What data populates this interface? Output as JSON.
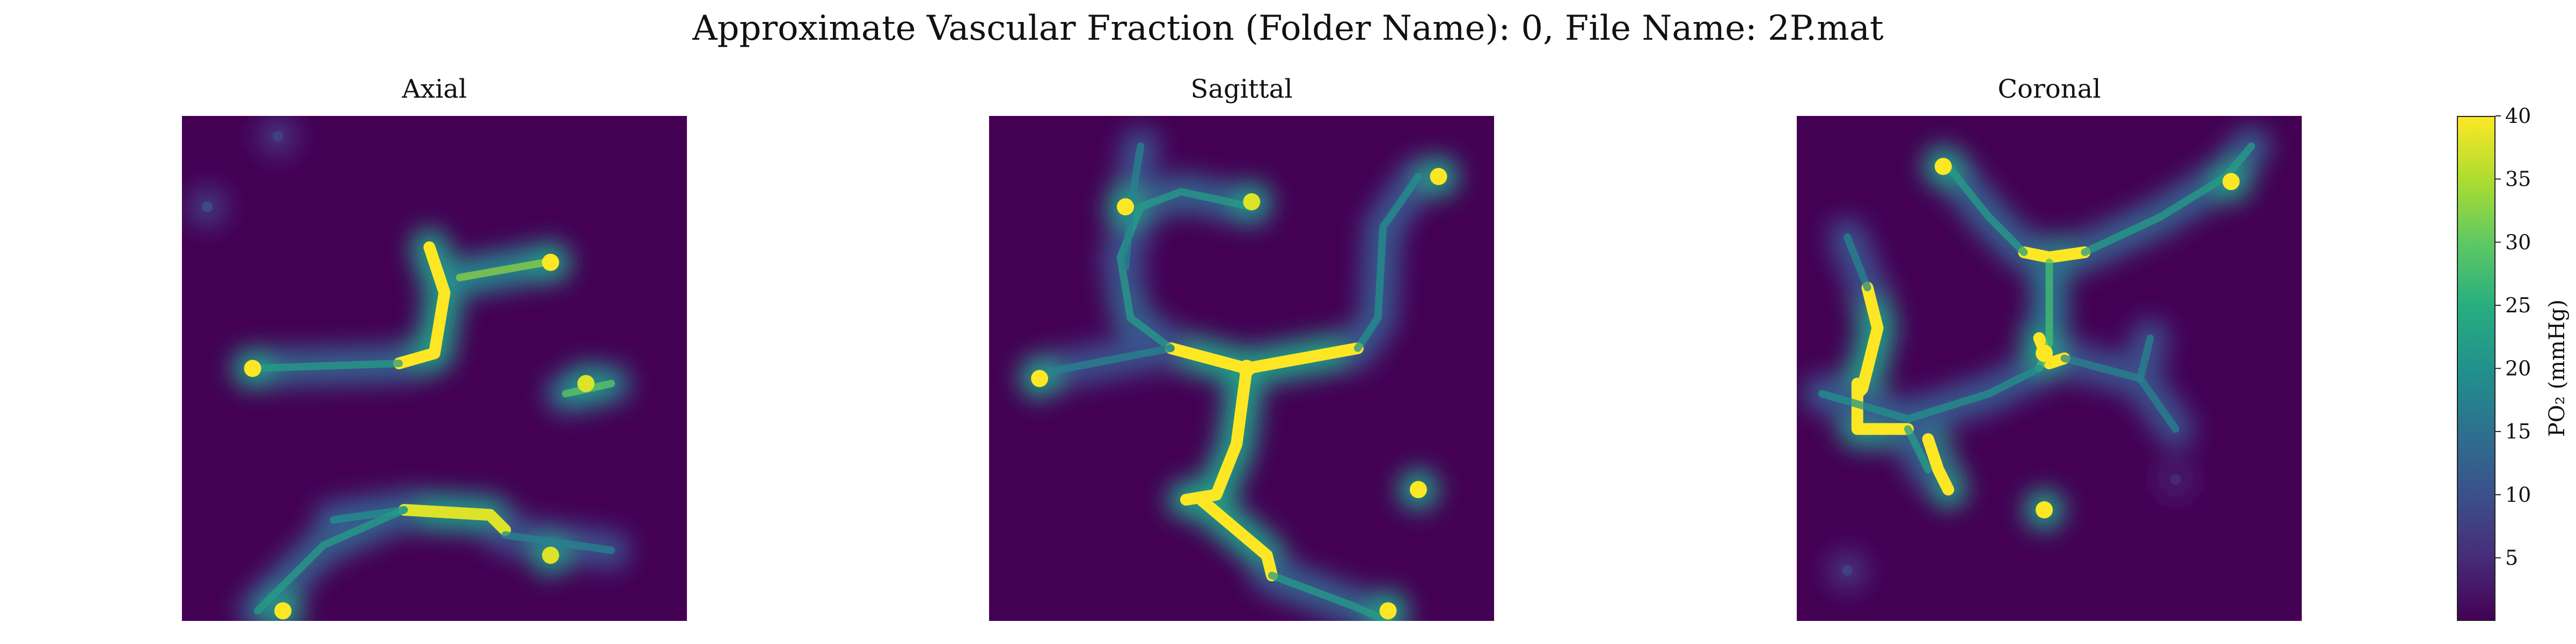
{
  "figure": {
    "title": "Approximate Vascular Fraction (Folder Name): 0, File Name: 2P.mat"
  },
  "colorbar": {
    "label": "PO₂ (mmHg)",
    "range": [
      0,
      40
    ],
    "ticks": [
      5,
      10,
      15,
      20,
      25,
      30,
      35,
      40
    ],
    "colormap": "viridis"
  },
  "chart_data": [
    {
      "type": "heatmap",
      "title": "Axial",
      "colormap": "viridis",
      "zlim": [
        0,
        40
      ],
      "units": "mmHg",
      "grid": false,
      "vessels": [
        {
          "path": [
            [
              0.49,
              0.26
            ],
            [
              0.52,
              0.35
            ],
            [
              0.5,
              0.47
            ],
            [
              0.43,
              0.49
            ]
          ],
          "po2": 40
        },
        {
          "path": [
            [
              0.55,
              0.32
            ],
            [
              0.72,
              0.29
            ]
          ],
          "po2": 33
        },
        {
          "path": [
            [
              0.14,
              0.5
            ],
            [
              0.43,
              0.49
            ]
          ],
          "po2": 22
        },
        {
          "path": [
            [
              0.44,
              0.78
            ],
            [
              0.61,
              0.79
            ],
            [
              0.64,
              0.82
            ]
          ],
          "po2": 38
        },
        {
          "path": [
            [
              0.3,
              0.8
            ],
            [
              0.44,
              0.78
            ]
          ],
          "po2": 20
        },
        {
          "path": [
            [
              0.64,
              0.83
            ],
            [
              0.85,
              0.86
            ]
          ],
          "po2": 18
        },
        {
          "path": [
            [
              0.15,
              0.98
            ],
            [
              0.28,
              0.85
            ],
            [
              0.44,
              0.78
            ]
          ],
          "po2": 22
        },
        {
          "path": [
            [
              0.76,
              0.55
            ],
            [
              0.85,
              0.53
            ]
          ],
          "po2": 30
        }
      ],
      "spots": [
        {
          "x": 0.14,
          "y": 0.5,
          "po2": 40
        },
        {
          "x": 0.73,
          "y": 0.29,
          "po2": 40
        },
        {
          "x": 0.8,
          "y": 0.53,
          "po2": 38
        },
        {
          "x": 0.73,
          "y": 0.87,
          "po2": 38
        },
        {
          "x": 0.2,
          "y": 0.98,
          "po2": 40
        },
        {
          "x": 0.05,
          "y": 0.18,
          "po2": 12
        },
        {
          "x": 0.19,
          "y": 0.04,
          "po2": 10
        }
      ]
    },
    {
      "type": "heatmap",
      "title": "Sagittal",
      "colormap": "viridis",
      "zlim": [
        0,
        40
      ],
      "units": "mmHg",
      "grid": false,
      "vessels": [
        {
          "path": [
            [
              0.36,
              0.46
            ],
            [
              0.51,
              0.5
            ],
            [
              0.73,
              0.46
            ]
          ],
          "po2": 40
        },
        {
          "path": [
            [
              0.51,
              0.5
            ],
            [
              0.49,
              0.65
            ],
            [
              0.45,
              0.75
            ],
            [
              0.39,
              0.76
            ]
          ],
          "po2": 40
        },
        {
          "path": [
            [
              0.42,
              0.76
            ],
            [
              0.55,
              0.87
            ],
            [
              0.56,
              0.91
            ]
          ],
          "po2": 40
        },
        {
          "path": [
            [
              0.36,
              0.46
            ],
            [
              0.28,
              0.4
            ],
            [
              0.26,
              0.28
            ],
            [
              0.3,
              0.18
            ],
            [
              0.38,
              0.15
            ],
            [
              0.52,
              0.18
            ]
          ],
          "po2": 22
        },
        {
          "path": [
            [
              0.73,
              0.46
            ],
            [
              0.77,
              0.4
            ],
            [
              0.78,
              0.22
            ],
            [
              0.85,
              0.12
            ]
          ],
          "po2": 20
        },
        {
          "path": [
            [
              0.1,
              0.51
            ],
            [
              0.36,
              0.46
            ]
          ],
          "po2": 18
        },
        {
          "path": [
            [
              0.56,
              0.91
            ],
            [
              0.72,
              0.97
            ],
            [
              0.79,
              1.0
            ]
          ],
          "po2": 22
        },
        {
          "path": [
            [
              0.27,
              0.3
            ],
            [
              0.28,
              0.18
            ],
            [
              0.3,
              0.06
            ]
          ],
          "po2": 18
        }
      ],
      "spots": [
        {
          "x": 0.27,
          "y": 0.18,
          "po2": 40
        },
        {
          "x": 0.52,
          "y": 0.17,
          "po2": 38
        },
        {
          "x": 0.89,
          "y": 0.12,
          "po2": 40
        },
        {
          "x": 0.1,
          "y": 0.52,
          "po2": 40
        },
        {
          "x": 0.51,
          "y": 0.5,
          "po2": 40
        },
        {
          "x": 0.85,
          "y": 0.74,
          "po2": 40
        },
        {
          "x": 0.79,
          "y": 0.98,
          "po2": 40
        }
      ]
    },
    {
      "type": "heatmap",
      "title": "Coronal",
      "colormap": "viridis",
      "zlim": [
        0,
        40
      ],
      "units": "mmHg",
      "grid": false,
      "vessels": [
        {
          "path": [
            [
              0.14,
              0.34
            ],
            [
              0.16,
              0.42
            ],
            [
              0.13,
              0.54
            ],
            [
              0.12,
              0.55
            ]
          ],
          "po2": 40
        },
        {
          "path": [
            [
              0.12,
              0.53
            ],
            [
              0.12,
              0.62
            ],
            [
              0.17,
              0.62
            ],
            [
              0.22,
              0.62
            ]
          ],
          "po2": 40
        },
        {
          "path": [
            [
              0.26,
              0.64
            ],
            [
              0.28,
              0.7
            ],
            [
              0.3,
              0.74
            ]
          ],
          "po2": 40
        },
        {
          "path": [
            [
              0.45,
              0.27
            ],
            [
              0.5,
              0.28
            ],
            [
              0.57,
              0.27
            ]
          ],
          "po2": 40
        },
        {
          "path": [
            [
              0.48,
              0.44
            ],
            [
              0.5,
              0.49
            ],
            [
              0.53,
              0.48
            ]
          ],
          "po2": 40
        },
        {
          "path": [
            [
              0.5,
              0.29
            ],
            [
              0.5,
              0.45
            ],
            [
              0.48,
              0.5
            ]
          ],
          "po2": 28
        },
        {
          "path": [
            [
              0.3,
              0.1
            ],
            [
              0.38,
              0.2
            ],
            [
              0.45,
              0.27
            ]
          ],
          "po2": 22
        },
        {
          "path": [
            [
              0.57,
              0.27
            ],
            [
              0.72,
              0.2
            ],
            [
              0.85,
              0.12
            ],
            [
              0.9,
              0.06
            ]
          ],
          "po2": 22
        },
        {
          "path": [
            [
              0.48,
              0.5
            ],
            [
              0.38,
              0.55
            ],
            [
              0.22,
              0.6
            ],
            [
              0.05,
              0.55
            ]
          ],
          "po2": 20
        },
        {
          "path": [
            [
              0.53,
              0.48
            ],
            [
              0.68,
              0.52
            ],
            [
              0.75,
              0.62
            ]
          ],
          "po2": 18
        },
        {
          "path": [
            [
              0.68,
              0.52
            ],
            [
              0.7,
              0.44
            ]
          ],
          "po2": 18
        },
        {
          "path": [
            [
              0.14,
              0.34
            ],
            [
              0.1,
              0.24
            ]
          ],
          "po2": 18
        },
        {
          "path": [
            [
              0.22,
              0.62
            ],
            [
              0.26,
              0.7
            ]
          ],
          "po2": 22
        }
      ],
      "spots": [
        {
          "x": 0.29,
          "y": 0.1,
          "po2": 40
        },
        {
          "x": 0.86,
          "y": 0.13,
          "po2": 40
        },
        {
          "x": 0.49,
          "y": 0.47,
          "po2": 40
        },
        {
          "x": 0.49,
          "y": 0.78,
          "po2": 40
        },
        {
          "x": 0.1,
          "y": 0.9,
          "po2": 10
        },
        {
          "x": 0.75,
          "y": 0.72,
          "po2": 6
        }
      ]
    }
  ]
}
